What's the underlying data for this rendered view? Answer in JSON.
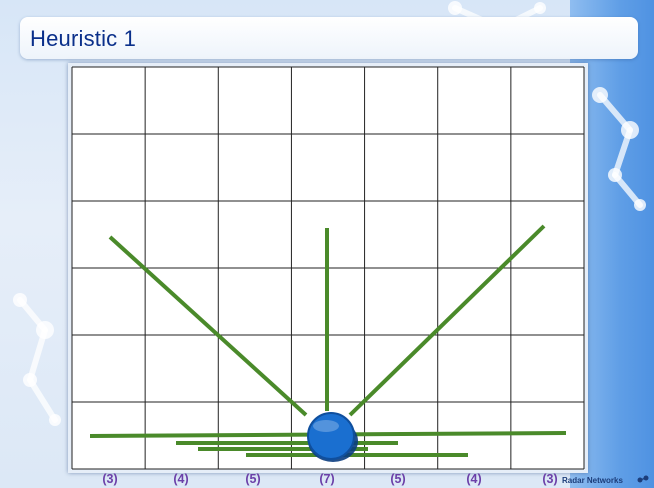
{
  "slide": {
    "title": "Heuristic 1"
  },
  "grid": {
    "columns": 7,
    "rows": 6
  },
  "lines": {
    "color": "#4a8a2a",
    "description_counts": {
      "left_diagonal": 1,
      "vertical": 1,
      "right_diagonal": 1,
      "horizontal": 4
    }
  },
  "radar": {
    "color": "#1a6fd0"
  },
  "scores": [
    {
      "label": "(3)"
    },
    {
      "label": "(4)"
    },
    {
      "label": "(5)"
    },
    {
      "label": "(7)"
    },
    {
      "label": "(5)"
    },
    {
      "label": "(4)"
    },
    {
      "label": "(3)"
    }
  ],
  "brand": {
    "name": "Radar Networks",
    "icon": "radar-networks-logo-icon"
  },
  "colors": {
    "title_text": "#0a2f8a",
    "score_text": "#6b3fa8",
    "background_accent": "#4f92e2"
  }
}
